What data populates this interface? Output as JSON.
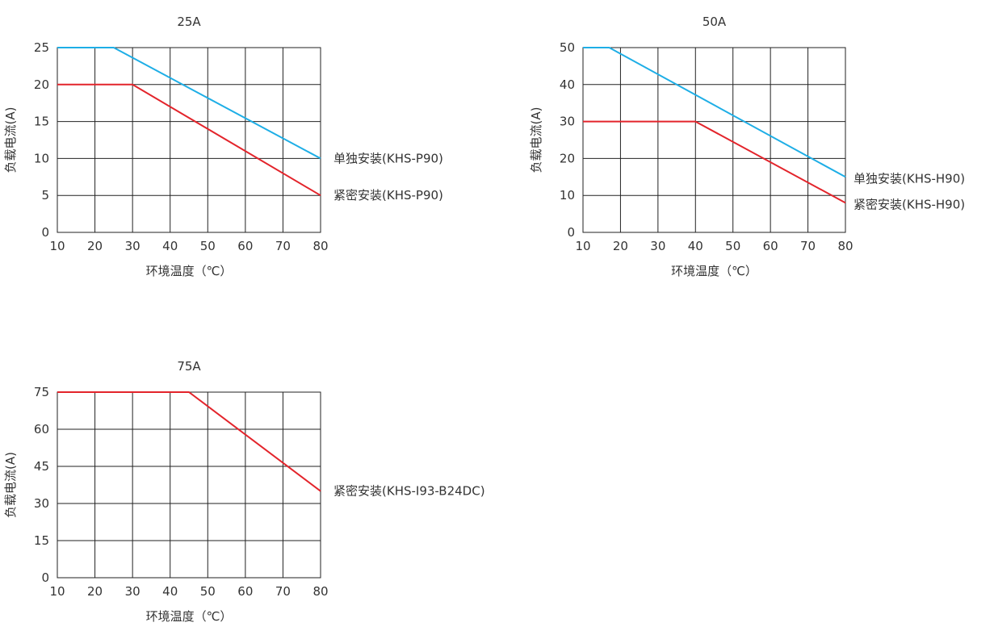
{
  "colors": {
    "blue": "#1eaee6",
    "red": "#e3242b",
    "grid": "#222222",
    "text": "#333333"
  },
  "chart_data": [
    {
      "type": "line",
      "title": "25A",
      "xlabel": "环境温度（℃）",
      "ylabel": "负载电流(A)",
      "xlim": [
        10,
        80
      ],
      "ylim": [
        0,
        25
      ],
      "xticks": [
        10,
        20,
        30,
        40,
        50,
        60,
        70,
        80
      ],
      "yticks": [
        0,
        5,
        10,
        15,
        20,
        25
      ],
      "grid": true,
      "series": [
        {
          "name": "单独安装(KHS-P90)",
          "color": "blue",
          "x": [
            10,
            25,
            80
          ],
          "y": [
            25,
            25,
            10
          ]
        },
        {
          "name": "紧密安装(KHS-P90)",
          "color": "red",
          "x": [
            10,
            30,
            80
          ],
          "y": [
            20,
            20,
            5
          ]
        }
      ]
    },
    {
      "type": "line",
      "title": "50A",
      "xlabel": "环境温度（℃）",
      "ylabel": "负载电流(A)",
      "xlim": [
        10,
        80
      ],
      "ylim": [
        0,
        50
      ],
      "xticks": [
        10,
        20,
        30,
        40,
        50,
        60,
        70,
        80
      ],
      "yticks": [
        0,
        10,
        20,
        30,
        40,
        50
      ],
      "grid": true,
      "series": [
        {
          "name": "单独安装(KHS-H90)",
          "color": "blue",
          "x": [
            10,
            17,
            80
          ],
          "y": [
            50,
            50,
            15
          ]
        },
        {
          "name": "紧密安装(KHS-H90)",
          "color": "red",
          "x": [
            10,
            40,
            80
          ],
          "y": [
            30,
            30,
            8
          ]
        }
      ]
    },
    {
      "type": "line",
      "title": "75A",
      "xlabel": "环境温度（℃）",
      "ylabel": "负载电流(A)",
      "xlim": [
        10,
        80
      ],
      "ylim": [
        0,
        75
      ],
      "xticks": [
        10,
        20,
        30,
        40,
        50,
        60,
        70,
        80
      ],
      "yticks": [
        0,
        15,
        30,
        45,
        60,
        75
      ],
      "grid": true,
      "series": [
        {
          "name": "紧密安装(KHS-I93-B24DC)",
          "color": "red",
          "x": [
            10,
            45,
            80
          ],
          "y": [
            75,
            75,
            35
          ]
        }
      ]
    }
  ]
}
